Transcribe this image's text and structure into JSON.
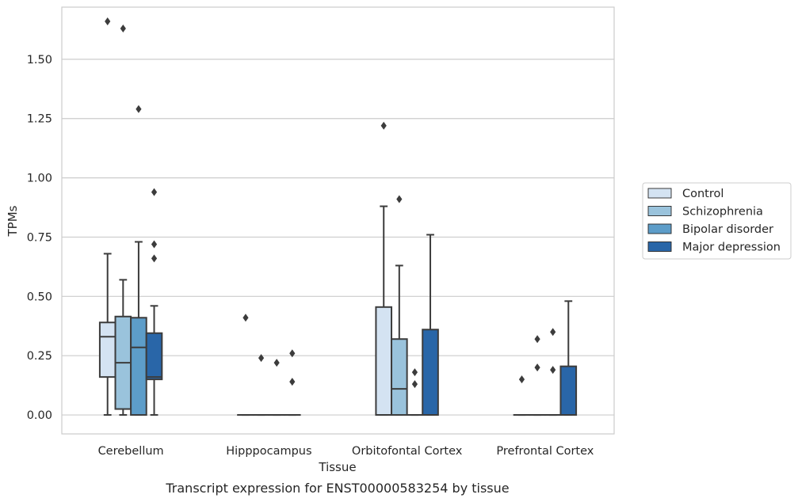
{
  "caption": "Transcript expression for ENST00000583254 by tissue",
  "chart_data": {
    "type": "box",
    "title": "",
    "xlabel": "Tissue",
    "ylabel": "TPMs",
    "ylim": [
      -0.08,
      1.72
    ],
    "yticks": [
      0.0,
      0.25,
      0.5,
      0.75,
      1.0,
      1.25,
      1.5
    ],
    "ytick_labels": [
      "0.00",
      "0.25",
      "0.50",
      "0.75",
      "1.00",
      "1.25",
      "1.50"
    ],
    "categories": [
      "Cerebellum",
      "Hipppocampus",
      "Orbitofontal Cortex",
      "Prefrontal Cortex"
    ],
    "grid": "horizontal",
    "legend_position": "right",
    "series": [
      {
        "name": "Control",
        "color": "#d4e3f2",
        "boxes": [
          {
            "whisker_low": 0.0,
            "q1": 0.16,
            "median": 0.33,
            "q3": 0.39,
            "whisker_high": 0.68,
            "outliers": [
              1.66
            ]
          },
          {
            "whisker_low": 0.0,
            "q1": 0.0,
            "median": 0.0,
            "q3": 0.0,
            "whisker_high": 0.0,
            "outliers": [
              0.41
            ]
          },
          {
            "whisker_low": 0.0,
            "q1": 0.0,
            "median": 0.0,
            "q3": 0.455,
            "whisker_high": 0.88,
            "outliers": [
              1.22
            ]
          },
          {
            "whisker_low": 0.0,
            "q1": 0.0,
            "median": 0.0,
            "q3": 0.0,
            "whisker_high": 0.0,
            "outliers": [
              0.15
            ]
          }
        ]
      },
      {
        "name": "Schizophrenia",
        "color": "#9ac3dc",
        "boxes": [
          {
            "whisker_low": 0.0,
            "q1": 0.025,
            "median": 0.22,
            "q3": 0.415,
            "whisker_high": 0.57,
            "outliers": [
              1.63
            ]
          },
          {
            "whisker_low": 0.0,
            "q1": 0.0,
            "median": 0.0,
            "q3": 0.0,
            "whisker_high": 0.0,
            "outliers": [
              0.24
            ]
          },
          {
            "whisker_low": 0.0,
            "q1": 0.0,
            "median": 0.11,
            "q3": 0.32,
            "whisker_high": 0.63,
            "outliers": [
              0.91
            ]
          },
          {
            "whisker_low": 0.0,
            "q1": 0.0,
            "median": 0.0,
            "q3": 0.0,
            "whisker_high": 0.0,
            "outliers": [
              0.2,
              0.32
            ]
          }
        ]
      },
      {
        "name": "Bipolar disorder",
        "color": "#5d9dc9",
        "boxes": [
          {
            "whisker_low": 0.0,
            "q1": 0.0,
            "median": 0.285,
            "q3": 0.41,
            "whisker_high": 0.73,
            "outliers": [
              1.29
            ]
          },
          {
            "whisker_low": 0.0,
            "q1": 0.0,
            "median": 0.0,
            "q3": 0.0,
            "whisker_high": 0.0,
            "outliers": [
              0.22
            ]
          },
          {
            "whisker_low": 0.0,
            "q1": 0.0,
            "median": 0.0,
            "q3": 0.0,
            "whisker_high": 0.0,
            "outliers": [
              0.13,
              0.18
            ]
          },
          {
            "whisker_low": 0.0,
            "q1": 0.0,
            "median": 0.0,
            "q3": 0.0,
            "whisker_high": 0.0,
            "outliers": [
              0.19,
              0.35
            ]
          }
        ]
      },
      {
        "name": "Major depression",
        "color": "#2966a8",
        "boxes": [
          {
            "whisker_low": 0.0,
            "q1": 0.15,
            "median": 0.16,
            "q3": 0.345,
            "whisker_high": 0.46,
            "outliers": [
              0.66,
              0.72,
              0.94
            ]
          },
          {
            "whisker_low": 0.0,
            "q1": 0.0,
            "median": 0.0,
            "q3": 0.0,
            "whisker_high": 0.0,
            "outliers": [
              0.14,
              0.26
            ]
          },
          {
            "whisker_low": 0.0,
            "q1": 0.0,
            "median": 0.0,
            "q3": 0.36,
            "whisker_high": 0.76,
            "outliers": []
          },
          {
            "whisker_low": 0.0,
            "q1": 0.0,
            "median": 0.0,
            "q3": 0.205,
            "whisker_high": 0.48,
            "outliers": []
          }
        ]
      }
    ]
  }
}
